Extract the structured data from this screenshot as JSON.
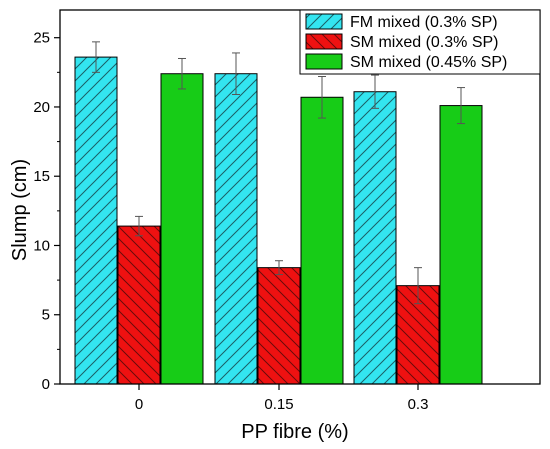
{
  "chart_data": {
    "type": "bar",
    "xlabel": "PP fibre (%)",
    "ylabel": "Slump (cm)",
    "categories": [
      "0",
      "0.15",
      "0.3"
    ],
    "ylim": [
      0,
      27
    ],
    "yticks": [
      0,
      5,
      10,
      15,
      20,
      25
    ],
    "series": [
      {
        "name": "FM mixed (0.3% SP)",
        "values": [
          23.6,
          22.4,
          21.1
        ],
        "errors": [
          1.1,
          1.5,
          1.2
        ],
        "color": "#33e5f0",
        "pattern": "hatch-forward"
      },
      {
        "name": "SM mixed (0.3% SP)",
        "values": [
          11.4,
          8.4,
          7.1
        ],
        "errors": [
          0.7,
          0.5,
          1.3
        ],
        "color": "#ee1111",
        "pattern": "hatch-back"
      },
      {
        "name": "SM mixed (0.45% SP)",
        "values": [
          22.4,
          20.7,
          20.1
        ],
        "errors": [
          1.1,
          1.5,
          1.3
        ],
        "color": "#17cc17",
        "pattern": "solid"
      }
    ],
    "legend": {
      "position": "top-right"
    },
    "grid": false
  }
}
